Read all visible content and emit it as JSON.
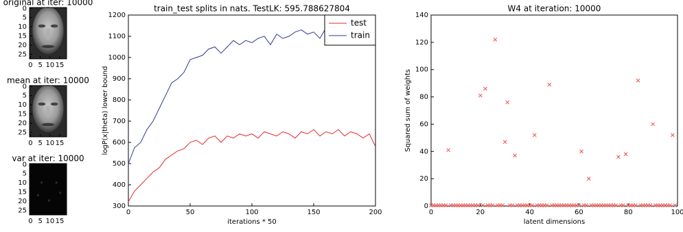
{
  "chart_data": [
    {
      "type": "image",
      "title": "original at iter: 10000",
      "xlim": [
        -0.5,
        18.5
      ],
      "ylim": [
        -0.5,
        27.5
      ],
      "xticks": [
        0,
        5,
        10,
        15
      ],
      "yticks": [
        0,
        5,
        10,
        15,
        20,
        25
      ],
      "y_inverted": true
    },
    {
      "type": "image",
      "title": "mean at iter: 10000",
      "xlim": [
        -0.5,
        18.5
      ],
      "ylim": [
        -0.5,
        27.5
      ],
      "xticks": [
        0,
        5,
        10,
        15
      ],
      "yticks": [
        0,
        5,
        10,
        15,
        20,
        25
      ],
      "y_inverted": true
    },
    {
      "type": "image",
      "title": "var at iter: 10000",
      "xlim": [
        -0.5,
        18.5
      ],
      "ylim": [
        -0.5,
        27.5
      ],
      "xticks": [
        0,
        5,
        10,
        15
      ],
      "yticks": [
        0,
        5,
        10,
        15,
        20,
        25
      ],
      "y_inverted": true
    },
    {
      "type": "line",
      "title": "train_test splits in nats. TestLK: 595.788627804",
      "x_label": "iterations * 50",
      "y_label": "logP(x|theta) lower bound",
      "xlim": [
        0,
        200
      ],
      "ylim": [
        300,
        1200
      ],
      "xticks": [
        0,
        50,
        100,
        150,
        200
      ],
      "yticks": [
        300,
        400,
        500,
        600,
        700,
        800,
        900,
        1000,
        1100,
        1200
      ],
      "legend": "upper right",
      "x": [
        0,
        5,
        10,
        15,
        20,
        25,
        30,
        35,
        40,
        45,
        50,
        55,
        60,
        65,
        70,
        75,
        80,
        85,
        90,
        95,
        100,
        105,
        110,
        115,
        120,
        125,
        130,
        135,
        140,
        145,
        150,
        155,
        160,
        165,
        170,
        175,
        180,
        185,
        190,
        195,
        200
      ],
      "series": [
        {
          "name": "test",
          "color": "#e8262a",
          "values": [
            320,
            370,
            400,
            430,
            460,
            480,
            520,
            540,
            560,
            570,
            600,
            610,
            590,
            620,
            630,
            600,
            630,
            620,
            640,
            630,
            640,
            620,
            650,
            640,
            630,
            650,
            640,
            620,
            650,
            640,
            660,
            630,
            650,
            640,
            660,
            630,
            650,
            640,
            620,
            640,
            580
          ]
        },
        {
          "name": "train",
          "color": "#2e3a92",
          "values": [
            500,
            575,
            600,
            660,
            700,
            760,
            820,
            880,
            900,
            930,
            990,
            1000,
            1010,
            1040,
            1050,
            1020,
            1050,
            1080,
            1060,
            1080,
            1070,
            1090,
            1100,
            1060,
            1110,
            1090,
            1100,
            1120,
            1130,
            1110,
            1120,
            1090,
            1140,
            1110,
            1130,
            1120,
            1140,
            1130,
            1120,
            1150,
            1170
          ]
        }
      ]
    },
    {
      "type": "scatter",
      "title": "W4 at iteration: 10000",
      "x_label": "latent dimensions",
      "y_label": "Squared sum of weights",
      "xlim": [
        0,
        100
      ],
      "ylim": [
        0,
        140
      ],
      "xticks": [
        0,
        20,
        40,
        60,
        80,
        100
      ],
      "yticks": [
        0,
        20,
        40,
        60,
        80,
        100,
        120,
        140
      ],
      "color": "#f0504a",
      "x": [
        0,
        1,
        2,
        3,
        4,
        5,
        6,
        7,
        8,
        9,
        10,
        11,
        12,
        13,
        14,
        15,
        16,
        17,
        18,
        19,
        20,
        21,
        22,
        23,
        24,
        25,
        26,
        27,
        28,
        29,
        30,
        31,
        32,
        33,
        34,
        35,
        36,
        37,
        38,
        39,
        40,
        41,
        42,
        43,
        44,
        45,
        46,
        47,
        48,
        49,
        50,
        51,
        52,
        53,
        54,
        55,
        56,
        57,
        58,
        59,
        60,
        61,
        62,
        63,
        64,
        65,
        66,
        67,
        68,
        69,
        70,
        71,
        72,
        73,
        74,
        75,
        76,
        77,
        78,
        79,
        80,
        81,
        82,
        83,
        84,
        85,
        86,
        87,
        88,
        89,
        90,
        91,
        92,
        93,
        94,
        95,
        96,
        97,
        98,
        99
      ],
      "values": [
        0.5,
        0.5,
        0.5,
        0.5,
        0.5,
        0.5,
        0.5,
        41,
        0.5,
        0.5,
        0.5,
        0.5,
        0.5,
        0.5,
        0.5,
        0.5,
        0.5,
        0.5,
        0.5,
        0.5,
        81,
        0.5,
        86,
        0.5,
        0.5,
        0.5,
        122,
        0.5,
        0.5,
        0.5,
        47,
        76,
        0.5,
        0.5,
        37,
        0.5,
        0.5,
        0.5,
        0.5,
        0.5,
        0.5,
        0.5,
        52,
        0.5,
        0.5,
        0.5,
        0.5,
        0.5,
        89,
        0.5,
        0.5,
        0.5,
        0.5,
        0.5,
        0.5,
        0.5,
        0.5,
        0.5,
        0.5,
        0.5,
        0.5,
        40,
        0.5,
        0.5,
        20,
        0.5,
        0.5,
        0.5,
        0.5,
        0.5,
        0.5,
        0.5,
        0.5,
        0.5,
        0.5,
        0.5,
        36,
        0.5,
        0.5,
        38,
        0.5,
        0.5,
        0.5,
        0.5,
        92,
        0.5,
        0.5,
        0.5,
        0.5,
        0.5,
        60,
        0.5,
        0.5,
        0.5,
        0.5,
        0.5,
        0.5,
        0.5,
        52,
        0.5
      ]
    }
  ]
}
